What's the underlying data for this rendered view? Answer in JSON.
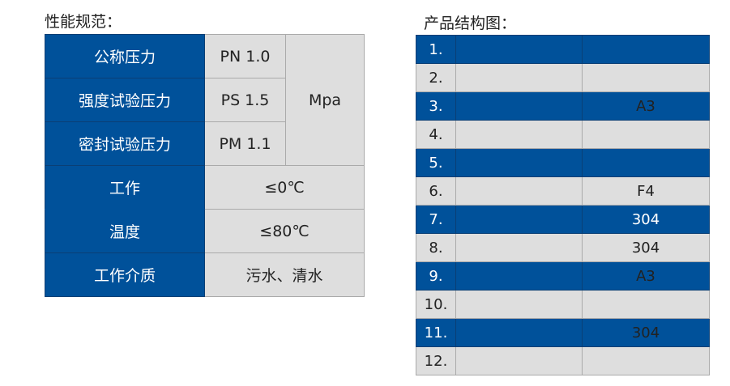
{
  "spec": {
    "title": "性能规范：",
    "rows": [
      {
        "label": "公称压力",
        "value": "PN 1.0"
      },
      {
        "label": "强度试验压力",
        "value": "PS  1.5"
      },
      {
        "label": "密封试验压力",
        "value": "PM 1.1"
      }
    ],
    "unit": "Mpa",
    "temp_label_1": "工作",
    "temp_value_1": "≤0℃",
    "temp_label_2": "温度",
    "temp_value_2": "≤80℃",
    "medium_label": "工作介质",
    "medium_value": "污水、清水"
  },
  "structure": {
    "title": "产品结构图：",
    "rows": [
      {
        "no": "1.",
        "name": "",
        "material": ""
      },
      {
        "no": "2.",
        "name": "",
        "material": ""
      },
      {
        "no": "3.",
        "name": "",
        "material": "A3"
      },
      {
        "no": "4.",
        "name": "",
        "material": ""
      },
      {
        "no": "5.",
        "name": "",
        "material": ""
      },
      {
        "no": "6.",
        "name": "",
        "material": "F4"
      },
      {
        "no": "7.",
        "name": "",
        "material": "304"
      },
      {
        "no": "8.",
        "name": "",
        "material": "304"
      },
      {
        "no": "9.",
        "name": "",
        "material": "A3"
      },
      {
        "no": "10.",
        "name": "",
        "material": ""
      },
      {
        "no": "11.",
        "name": "",
        "material": "304"
      },
      {
        "no": "12.",
        "name": "",
        "material": ""
      }
    ]
  },
  "colors": {
    "blue": "#00519a",
    "gray": "#dedede"
  }
}
